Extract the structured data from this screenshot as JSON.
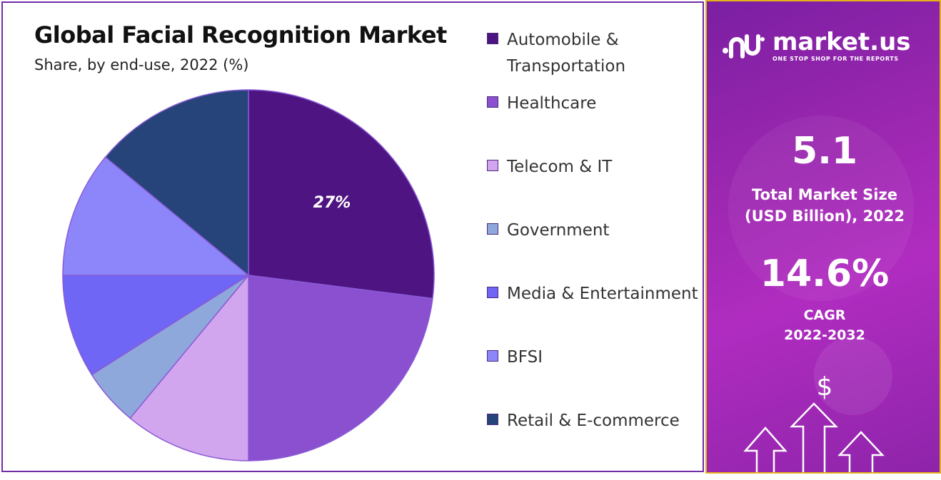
{
  "chart_data": {
    "type": "pie",
    "title": "Global Facial Recognition Market",
    "subtitle": "Share, by end-use, 2022 (%)",
    "categories": [
      "Automobile & Transportation",
      "Healthcare",
      "Telecom & IT",
      "Government",
      "Media & Entertainment",
      "BFSI",
      "Retail & E-commerce"
    ],
    "values": [
      27,
      23,
      11,
      5,
      9,
      11,
      14
    ],
    "data_labels": [
      "27%",
      "",
      "",
      "",
      "",
      "",
      ""
    ],
    "colors": [
      "#4e1582",
      "#8a50d0",
      "#d2a6ee",
      "#8fa8db",
      "#6f66f5",
      "#8d86fb",
      "#26447a"
    ],
    "legend_position": "right"
  },
  "sidebar": {
    "brand_name": "market.us",
    "tagline": "ONE STOP SHOP FOR THE REPORTS",
    "market_size_value": "5.1",
    "market_size_label_line1": "Total Market Size",
    "market_size_label_line2": "(USD Billion), 2022",
    "cagr_value": "14.6%",
    "cagr_label_line1": "CAGR",
    "cagr_label_line2": "2022-2032",
    "dollar_symbol": "$"
  }
}
